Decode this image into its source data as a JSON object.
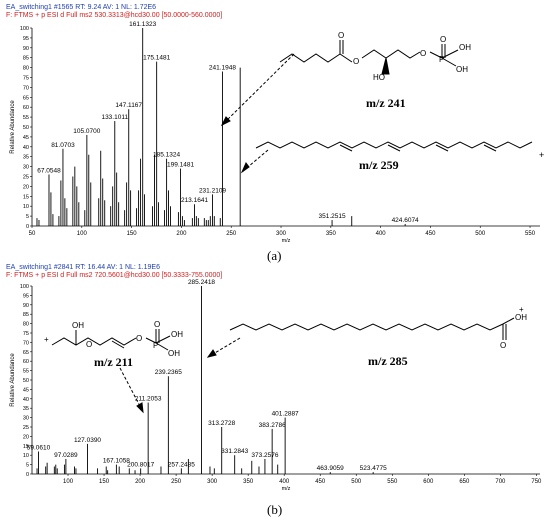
{
  "panel_a": {
    "header_line1": "EA_switching1 #1565  RT: 9.24  AV: 1  NL: 1.72E6",
    "header_line2": "F: FTMS + p ESI d Full ms2 530.3313@hcd30.00 [50.0000-560.0000]",
    "label_241": "m/z 241",
    "label_259": "m/z 259",
    "caption": "(a)"
  },
  "panel_b": {
    "header_line1": "EA_switching1 #2841  RT: 16.44  AV: 1  NL: 1.19E6",
    "header_line2": "F: FTMS + p ESI d Full ms2 720.5601@hcd30.00 [50.3333-755.0000]",
    "label_211": "m/z 211",
    "label_285": "m/z 285",
    "caption": "(b)"
  },
  "chart_data": [
    {
      "type": "bar",
      "ylabel": "Relative Abundance",
      "xlabel": "m/z",
      "xlim": [
        50,
        560
      ],
      "ylim": [
        0,
        100
      ],
      "xticks": [
        50,
        100,
        150,
        200,
        250,
        300,
        350,
        400,
        450,
        500,
        550
      ],
      "yticks": [
        0,
        5,
        10,
        15,
        20,
        25,
        30,
        35,
        40,
        45,
        50,
        55,
        60,
        65,
        70,
        75,
        80,
        85,
        90,
        95,
        100
      ],
      "labeled_peaks": [
        {
          "mz": 161.1323,
          "y": 100,
          "label": "161.1323"
        },
        {
          "mz": 175.1481,
          "y": 83,
          "label": "175.1481"
        },
        {
          "mz": 241.1948,
          "y": 78,
          "label": "241.1948"
        },
        {
          "mz": 147.1167,
          "y": 59,
          "label": "147.1167"
        },
        {
          "mz": 133.1011,
          "y": 53,
          "label": "133.1011"
        },
        {
          "mz": 105.07,
          "y": 46,
          "label": "105.0700"
        },
        {
          "mz": 81.0703,
          "y": 39,
          "label": "81.0703"
        },
        {
          "mz": 185.1324,
          "y": 34,
          "label": "185.1324"
        },
        {
          "mz": 199.1481,
          "y": 29,
          "label": "199.1481"
        },
        {
          "mz": 67.0548,
          "y": 26,
          "label": "67.0548"
        },
        {
          "mz": 231.2109,
          "y": 16,
          "label": "231.2109"
        },
        {
          "mz": 213.1641,
          "y": 11,
          "label": "213.1641"
        },
        {
          "mz": 351.2515,
          "y": 3,
          "label": "351.2515"
        },
        {
          "mz": 424.6074,
          "y": 1,
          "label": "424.6074"
        }
      ],
      "unlabeled_peaks": [
        {
          "mz": 55,
          "y": 4
        },
        {
          "mz": 57,
          "y": 3
        },
        {
          "mz": 69,
          "y": 17
        },
        {
          "mz": 71,
          "y": 6
        },
        {
          "mz": 77,
          "y": 5
        },
        {
          "mz": 79,
          "y": 23
        },
        {
          "mz": 83,
          "y": 14
        },
        {
          "mz": 85,
          "y": 9
        },
        {
          "mz": 91,
          "y": 25
        },
        {
          "mz": 93,
          "y": 30
        },
        {
          "mz": 95,
          "y": 20
        },
        {
          "mz": 97,
          "y": 12
        },
        {
          "mz": 103,
          "y": 8
        },
        {
          "mz": 107,
          "y": 36
        },
        {
          "mz": 109,
          "y": 22
        },
        {
          "mz": 117,
          "y": 14
        },
        {
          "mz": 119,
          "y": 38
        },
        {
          "mz": 121,
          "y": 24
        },
        {
          "mz": 123,
          "y": 13
        },
        {
          "mz": 129,
          "y": 10
        },
        {
          "mz": 131,
          "y": 20
        },
        {
          "mz": 135,
          "y": 27
        },
        {
          "mz": 137,
          "y": 12
        },
        {
          "mz": 143,
          "y": 8
        },
        {
          "mz": 145,
          "y": 22
        },
        {
          "mz": 149,
          "y": 18
        },
        {
          "mz": 155,
          "y": 9
        },
        {
          "mz": 157,
          "y": 18
        },
        {
          "mz": 159,
          "y": 34
        },
        {
          "mz": 163,
          "y": 16
        },
        {
          "mz": 171,
          "y": 10
        },
        {
          "mz": 173,
          "y": 36
        },
        {
          "mz": 177,
          "y": 12
        },
        {
          "mz": 183,
          "y": 8
        },
        {
          "mz": 187,
          "y": 18
        },
        {
          "mz": 189,
          "y": 10
        },
        {
          "mz": 197,
          "y": 7
        },
        {
          "mz": 201,
          "y": 5
        },
        {
          "mz": 203,
          "y": 3
        },
        {
          "mz": 211,
          "y": 4
        },
        {
          "mz": 215,
          "y": 5
        },
        {
          "mz": 217,
          "y": 4
        },
        {
          "mz": 223,
          "y": 4
        },
        {
          "mz": 225,
          "y": 3
        },
        {
          "mz": 227,
          "y": 3
        },
        {
          "mz": 229,
          "y": 5
        },
        {
          "mz": 233,
          "y": 5
        },
        {
          "mz": 239,
          "y": 4
        },
        {
          "mz": 259,
          "y": 80
        },
        {
          "mz": 371,
          "y": 5
        }
      ]
    },
    {
      "type": "bar",
      "ylabel": "Relative Abundance",
      "xlabel": "m/z",
      "xlim": [
        50,
        755
      ],
      "ylim": [
        0,
        100
      ],
      "xticks": [
        100,
        150,
        200,
        250,
        300,
        350,
        400,
        450,
        500,
        550,
        600,
        650,
        700,
        750
      ],
      "yticks": [
        0,
        5,
        10,
        15,
        20,
        25,
        30,
        35,
        40,
        45,
        50,
        55,
        60,
        65,
        70,
        75,
        80,
        85,
        90,
        95,
        100
      ],
      "labeled_peaks": [
        {
          "mz": 285.2418,
          "y": 100,
          "label": "285.2418"
        },
        {
          "mz": 239.2365,
          "y": 52,
          "label": "239.2365"
        },
        {
          "mz": 211.2053,
          "y": 38,
          "label": "211.2053"
        },
        {
          "mz": 401.2887,
          "y": 30,
          "label": "401.2887"
        },
        {
          "mz": 383.2786,
          "y": 24,
          "label": "383.2786"
        },
        {
          "mz": 313.2728,
          "y": 25,
          "label": "313.2728"
        },
        {
          "mz": 127.039,
          "y": 16,
          "label": "127.0390"
        },
        {
          "mz": 59.061,
          "y": 12,
          "label": "59.0610"
        },
        {
          "mz": 373.2576,
          "y": 8,
          "label": "373.2576"
        },
        {
          "mz": 331.2843,
          "y": 10,
          "label": "331.2843"
        },
        {
          "mz": 97.0289,
          "y": 8,
          "label": "97.0289"
        },
        {
          "mz": 167.1058,
          "y": 5,
          "label": "167.1058"
        },
        {
          "mz": 200.8017,
          "y": 3,
          "label": "200.8017"
        },
        {
          "mz": 257.2485,
          "y": 3,
          "label": "257.2485"
        },
        {
          "mz": 463.9059,
          "y": 1,
          "label": "463.9059"
        },
        {
          "mz": 523.4775,
          "y": 1,
          "label": "523.4775"
        }
      ],
      "unlabeled_peaks": [
        {
          "mz": 57,
          "y": 3
        },
        {
          "mz": 69,
          "y": 4
        },
        {
          "mz": 71,
          "y": 6
        },
        {
          "mz": 81,
          "y": 4
        },
        {
          "mz": 83,
          "y": 5
        },
        {
          "mz": 85,
          "y": 3
        },
        {
          "mz": 95,
          "y": 5
        },
        {
          "mz": 109,
          "y": 4
        },
        {
          "mz": 111,
          "y": 3
        },
        {
          "mz": 141,
          "y": 3
        },
        {
          "mz": 153,
          "y": 4
        },
        {
          "mz": 155,
          "y": 2
        },
        {
          "mz": 171,
          "y": 4
        },
        {
          "mz": 185,
          "y": 3
        },
        {
          "mz": 193,
          "y": 2
        },
        {
          "mz": 229,
          "y": 4
        },
        {
          "mz": 267,
          "y": 8
        },
        {
          "mz": 297,
          "y": 4
        },
        {
          "mz": 303,
          "y": 3
        },
        {
          "mz": 341,
          "y": 3
        },
        {
          "mz": 355,
          "y": 7
        },
        {
          "mz": 365,
          "y": 4
        },
        {
          "mz": 391,
          "y": 5
        }
      ]
    }
  ]
}
